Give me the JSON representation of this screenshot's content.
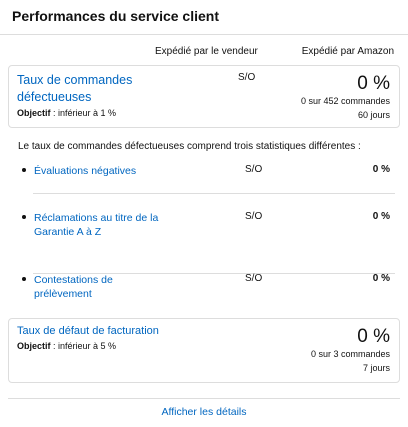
{
  "header": {
    "title": "Performances du service client"
  },
  "columns": [
    "Expédié par le vendeur",
    "Expédié par Amazon"
  ],
  "defect_rate": {
    "label": "Taux de commandes défectueuses",
    "objective_label": "Objectif",
    "objective": ": inférieur à 1 %",
    "seller": "S/O",
    "amazon": "0 %",
    "count": "0 sur 452 commandes",
    "period": "60 jours"
  },
  "description": "Le taux de commandes défectueuses comprend trois statistiques différentes :",
  "items": [
    {
      "label": "Évaluations négatives",
      "seller": "S/O",
      "amazon": "0 %"
    },
    {
      "label": "Réclamations au titre de la Garantie A à Z",
      "seller": "S/O",
      "amazon": "0 %"
    },
    {
      "label": "Contestations de prélèvement",
      "seller": "S/O",
      "amazon": "0 %"
    }
  ],
  "billing_rate": {
    "label": "Taux de défaut de facturation",
    "objective_label": "Objectif",
    "objective": ": inférieur à 5 %",
    "amazon": "0 %",
    "count": "0 sur 3 commandes",
    "period": "7 jours"
  },
  "footer": {
    "link": "Afficher les détails"
  }
}
